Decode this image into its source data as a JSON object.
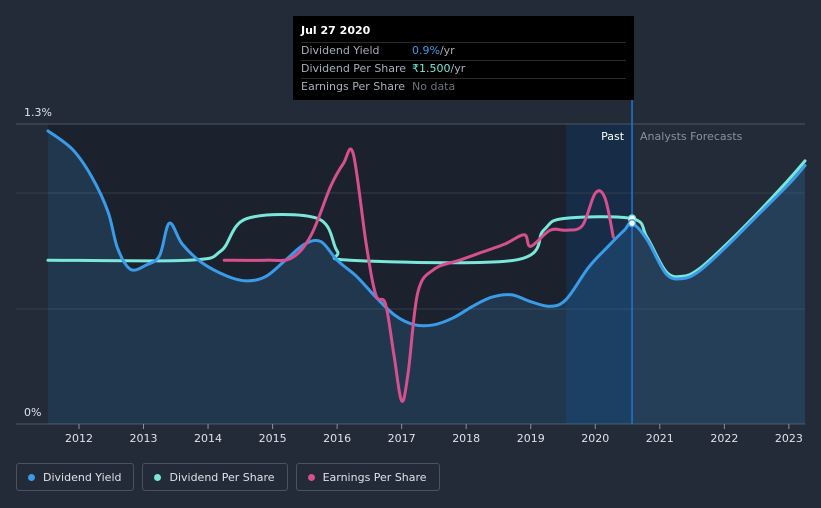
{
  "tooltip": {
    "date": "Jul 27 2020",
    "rows": [
      {
        "label": "Dividend Yield",
        "value": "0.9%",
        "unit": " /yr"
      },
      {
        "label": "Dividend Per Share",
        "value": "₹1.500",
        "unit": " /yr"
      },
      {
        "label": "Earnings Per Share",
        "value": "No data"
      }
    ]
  },
  "regions": {
    "past": "Past",
    "forecast": "Analysts Forecasts"
  },
  "legend": [
    {
      "label": "Dividend Yield",
      "color": "#3a9be8"
    },
    {
      "label": "Dividend Per Share",
      "color": "#7ae7d9"
    },
    {
      "label": "Earnings Per Share",
      "color": "#d64f8f"
    }
  ],
  "chart_data": {
    "type": "line",
    "ylim": [
      0,
      1.3
    ],
    "yaxis_labels": [
      "1.3%",
      "0%"
    ],
    "x_tick_labels": [
      "2012",
      "2013",
      "2014",
      "2015",
      "2016",
      "2017",
      "2018",
      "2019",
      "2020",
      "2021",
      "2022",
      "2023"
    ],
    "x_range": [
      2011.52,
      2023.25
    ],
    "past_end": 2020.57,
    "highlight_start": 2019.55,
    "series": [
      {
        "name": "Dividend Yield",
        "color": "#3a9be8",
        "filled": true,
        "points": [
          [
            2011.52,
            1.27
          ],
          [
            2011.9,
            1.19
          ],
          [
            2012.2,
            1.07
          ],
          [
            2012.45,
            0.92
          ],
          [
            2012.6,
            0.76
          ],
          [
            2012.8,
            0.67
          ],
          [
            2013.05,
            0.69
          ],
          [
            2013.25,
            0.73
          ],
          [
            2013.4,
            0.87
          ],
          [
            2013.6,
            0.78
          ],
          [
            2013.9,
            0.7
          ],
          [
            2014.3,
            0.64
          ],
          [
            2014.6,
            0.62
          ],
          [
            2014.9,
            0.64
          ],
          [
            2015.2,
            0.71
          ],
          [
            2015.5,
            0.78
          ],
          [
            2015.75,
            0.79
          ],
          [
            2016.0,
            0.71
          ],
          [
            2016.3,
            0.64
          ],
          [
            2016.6,
            0.55
          ],
          [
            2016.9,
            0.47
          ],
          [
            2017.2,
            0.43
          ],
          [
            2017.5,
            0.43
          ],
          [
            2017.8,
            0.46
          ],
          [
            2018.1,
            0.51
          ],
          [
            2018.4,
            0.55
          ],
          [
            2018.7,
            0.56
          ],
          [
            2019.0,
            0.53
          ],
          [
            2019.3,
            0.51
          ],
          [
            2019.55,
            0.54
          ],
          [
            2019.9,
            0.68
          ],
          [
            2020.2,
            0.77
          ],
          [
            2020.45,
            0.84
          ],
          [
            2020.57,
            0.87
          ],
          [
            2020.8,
            0.8
          ],
          [
            2021.1,
            0.65
          ],
          [
            2021.35,
            0.63
          ],
          [
            2021.6,
            0.66
          ],
          [
            2022.0,
            0.76
          ],
          [
            2022.5,
            0.9
          ],
          [
            2023.0,
            1.04
          ],
          [
            2023.25,
            1.12
          ]
        ]
      },
      {
        "name": "Dividend Per Share",
        "color": "#7ae7d9",
        "filled": false,
        "points": [
          [
            2011.52,
            0.71
          ],
          [
            2013.7,
            0.71
          ],
          [
            2014.2,
            0.75
          ],
          [
            2014.6,
            0.89
          ],
          [
            2015.7,
            0.89
          ],
          [
            2016.0,
            0.75
          ],
          [
            2016.2,
            0.71
          ],
          [
            2018.75,
            0.71
          ],
          [
            2019.2,
            0.84
          ],
          [
            2019.5,
            0.89
          ],
          [
            2020.57,
            0.89
          ],
          [
            2020.8,
            0.81
          ],
          [
            2021.1,
            0.66
          ],
          [
            2021.35,
            0.64
          ],
          [
            2021.6,
            0.67
          ],
          [
            2022.0,
            0.77
          ],
          [
            2022.5,
            0.91
          ],
          [
            2023.0,
            1.06
          ],
          [
            2023.25,
            1.14
          ]
        ]
      },
      {
        "name": "Earnings Per Share",
        "color": "#d64f8f",
        "filled": false,
        "points": [
          [
            2014.25,
            0.71
          ],
          [
            2014.9,
            0.71
          ],
          [
            2015.3,
            0.72
          ],
          [
            2015.6,
            0.82
          ],
          [
            2015.9,
            1.03
          ],
          [
            2016.1,
            1.13
          ],
          [
            2016.25,
            1.17
          ],
          [
            2016.45,
            0.78
          ],
          [
            2016.6,
            0.56
          ],
          [
            2016.75,
            0.52
          ],
          [
            2016.88,
            0.3
          ],
          [
            2017.0,
            0.1
          ],
          [
            2017.1,
            0.22
          ],
          [
            2017.25,
            0.57
          ],
          [
            2017.5,
            0.67
          ],
          [
            2017.9,
            0.71
          ],
          [
            2018.2,
            0.74
          ],
          [
            2018.6,
            0.78
          ],
          [
            2018.9,
            0.82
          ],
          [
            2019.0,
            0.77
          ],
          [
            2019.3,
            0.84
          ],
          [
            2019.55,
            0.84
          ],
          [
            2019.8,
            0.86
          ],
          [
            2020.0,
            1.0
          ],
          [
            2020.15,
            0.98
          ],
          [
            2020.28,
            0.81
          ]
        ]
      }
    ]
  }
}
